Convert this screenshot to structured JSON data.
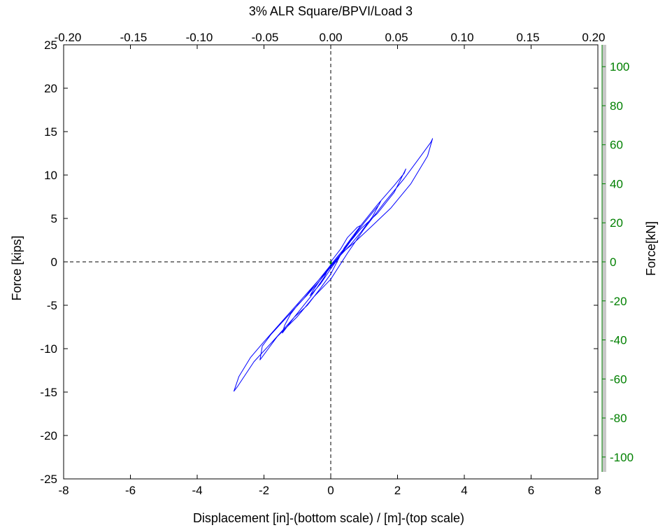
{
  "chart_data": {
    "type": "line",
    "title": "3% ALR Square/BPVI/Load 3",
    "xlabel": "Displacement [in]-(bottom scale) / [m]-(top scale)",
    "ylabel": "Force [kips]",
    "ylabel_right": "Force[kN]",
    "xlim": [
      -8,
      8
    ],
    "ylim": [
      -25,
      25
    ],
    "x_top_lim": [
      -0.2032,
      0.2032
    ],
    "y_right_lim": [
      -111.2,
      111.2
    ],
    "x_ticks": [
      "-8",
      "-6",
      "-4",
      "-2",
      "0",
      "2",
      "4",
      "6",
      "8"
    ],
    "y_ticks": [
      "-25",
      "-20",
      "-15",
      "-10",
      "-5",
      "0",
      "5",
      "10",
      "15",
      "20",
      "25"
    ],
    "x_top_ticks": [
      "-0.20",
      "-0.15",
      "-0.10",
      "-0.05",
      "0.00",
      "0.05",
      "0.10",
      "0.15",
      "0.20"
    ],
    "y_right_ticks": [
      "-100",
      "-80",
      "-60",
      "-40",
      "-20",
      "0",
      "20",
      "40",
      "60",
      "80",
      "100"
    ],
    "grid": false,
    "reference_lines": {
      "x": 0,
      "y": 0,
      "style": "dashed"
    },
    "colors": {
      "series": "#0000ff",
      "right_axis": "#008000",
      "marker": "#008000",
      "right_band": "#c8c8c8"
    },
    "series": [
      {
        "x": [
          0,
          0.3,
          0.5,
          0.8,
          0.9,
          0.6,
          0.3,
          0,
          -0.3,
          -0.55,
          -0.62,
          -0.3,
          0,
          0.3,
          0.5,
          1.0,
          1.3,
          1.45,
          1.5,
          1.25,
          0.9,
          0.6,
          0.3,
          0,
          -0.4,
          -0.7,
          -1.0,
          -1.2,
          -1.38,
          -1.45,
          -1.1,
          -0.7,
          -0.3,
          0,
          0.4,
          0.9,
          1.4,
          1.9,
          2.2,
          2.25,
          1.9,
          1.4,
          0.9,
          0.6,
          0.2,
          -0.3,
          -0.8,
          -1.3,
          -1.8,
          -2.05,
          -2.12,
          -1.6,
          -1.0,
          -0.5,
          0,
          0.5,
          1.0,
          1.6,
          2.2,
          2.7,
          3.0,
          3.05,
          2.9,
          2.4,
          1.8,
          1.2,
          0.7,
          0.3,
          -0.2,
          -0.8,
          -1.4,
          -2.0,
          -2.4,
          -2.75,
          -2.9,
          -2.8,
          -2.3,
          -1.7,
          -1.1,
          -0.6,
          -0.2,
          0
        ],
        "y": [
          0,
          1.5,
          2.8,
          4.0,
          4.2,
          2.4,
          0.8,
          -0.5,
          -2.0,
          -3.4,
          -3.9,
          -2.5,
          -0.8,
          0.8,
          2.0,
          4.5,
          5.9,
          6.6,
          7.0,
          5.2,
          3.4,
          2.0,
          0.8,
          -0.6,
          -2.5,
          -3.8,
          -5.0,
          -6.0,
          -7.3,
          -8.2,
          -6.4,
          -5.0,
          -3.0,
          -1.4,
          1.6,
          4.2,
          6.6,
          8.8,
          10.2,
          10.7,
          8.0,
          5.6,
          3.8,
          2.4,
          0.6,
          -1.8,
          -4.2,
          -6.3,
          -8.4,
          -9.7,
          -11.3,
          -8.6,
          -6.3,
          -4.0,
          -2.0,
          1.0,
          3.8,
          6.8,
          9.6,
          12.2,
          13.8,
          14.2,
          12.2,
          9.0,
          6.2,
          4.0,
          2.2,
          0.9,
          -1.4,
          -4.0,
          -6.6,
          -9.2,
          -11.0,
          -13.2,
          -14.9,
          -14.4,
          -11.5,
          -9.0,
          -6.4,
          -4.0,
          -1.8,
          -0.3
        ]
      }
    ]
  }
}
